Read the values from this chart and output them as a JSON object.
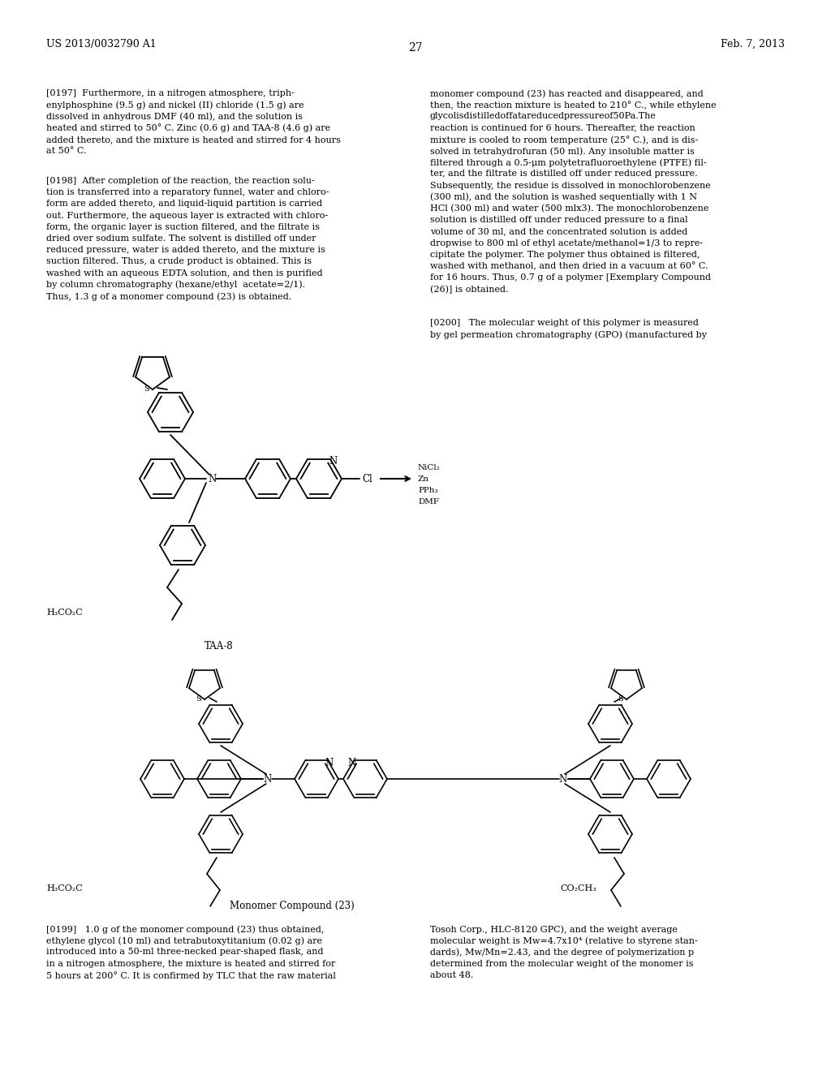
{
  "page_header_left": "US 2013/0032790 A1",
  "page_header_right": "Feb. 7, 2013",
  "page_number": "27",
  "background_color": "#ffffff",
  "text_color": "#000000",
  "para_197_left": "[0197]  Furthermore, in a nitrogen atmosphere, triph-\nenylphosphine (9.5 g) and nickel (II) chloride (1.5 g) are\ndissolved in anhydrous DMF (40 ml), and the solution is\nheated and stirred to 50° C. Zinc (0.6 g) and TAA-8 (4.6 g) are\nadded thereto, and the mixture is heated and stirred for 4 hours\nat 50° C.",
  "para_198_left": "[0198]  After completion of the reaction, the reaction solu-\ntion is transferred into a reparatory funnel, water and chloro-\nform are added thereto, and liquid-liquid partition is carried\nout. Furthermore, the aqueous layer is extracted with chloro-\nform, the organic layer is suction filtered, and the filtrate is\ndried over sodium sulfate. The solvent is distilled off under\nreduced pressure, water is added thereto, and the mixture is\nsuction filtered. Thus, a crude product is obtained. This is\nwashed with an aqueous EDTA solution, and then is purified\nby column chromatography (hexane/ethyl  acetate=2/1).\nThus, 1.3 g of a monomer compound (23) is obtained.",
  "para_right_top": "monomer compound (23) has reacted and disappeared, and\nthen, the reaction mixture is heated to 210° C., while ethylene\nglycolisdistilledoffatareducedpressureof50Pa.The\nreaction is continued for 6 hours. Thereafter, the reaction\nmixture is cooled to room temperature (25° C.), and is dis-\nsolved in tetrahydrofuran (50 ml). Any insoluble matter is\nfiltered through a 0.5-μm polytetrafluoroethylene (PTFE) fil-\nter, and the filtrate is distilled off under reduced pressure.\nSubsequently, the residue is dissolved in monochlorobenzene\n(300 ml), and the solution is washed sequentially with 1 N\nHCl (300 ml) and water (500 mlx3). The monochlorobenzene\nsolution is distilled off under reduced pressure to a final\nvolume of 30 ml, and the concentrated solution is added\ndropwise to 800 ml of ethyl acetate/methanol=1/3 to repre-\ncipitate the polymer. The polymer thus obtained is filtered,\nwashed with methanol, and then dried in a vacuum at 60° C.\nfor 16 hours. Thus, 0.7 g of a polymer [Exemplary Compound\n(26)] is obtained.",
  "para_200_right": "[0200]   The molecular weight of this polymer is measured\nby gel permeation chromatography (GPO) (manufactured by",
  "para_199_left": "[0199]   1.0 g of the monomer compound (23) thus obtained,\nethylene glycol (10 ml) and tetrabutoxytitanium (0.02 g) are\nintroduced into a 50-ml three-necked pear-shaped flask, and\nin a nitrogen atmosphere, the mixture is heated and stirred for\n5 hours at 200° C. It is confirmed by TLC that the raw material",
  "para_199_right": "Tosoh Corp., HLC-8120 GPC), and the weight average\nmolecular weight is Mw=4.7x10⁴ (relative to styrene stan-\ndards), Mw/Mn=2.43, and the degree of polymerization p\ndetermined from the molecular weight of the monomer is\nabout 48.",
  "label_taa8": "TAA-8",
  "label_monomer": "Monomer Compound (23)",
  "label_h3co2c_1": "H₃CO₂C",
  "label_h3co2c_2": "H₃CO₂C",
  "label_co2ch3": "CO₂CH₃"
}
